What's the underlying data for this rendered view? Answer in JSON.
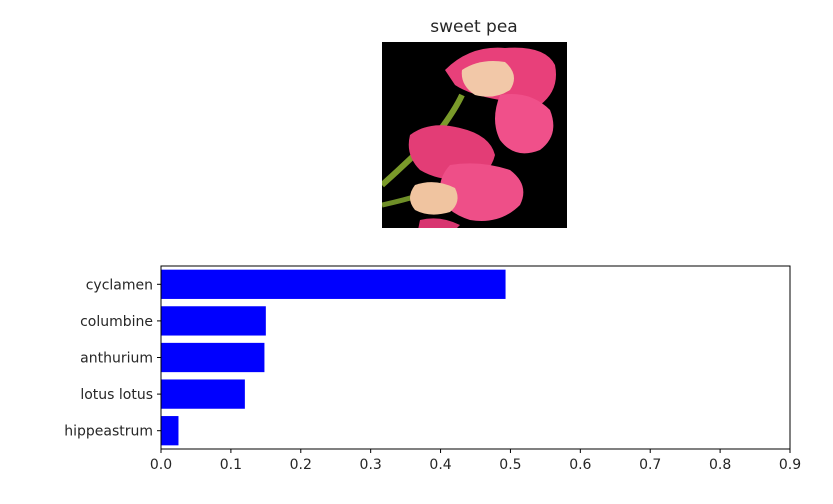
{
  "image_panel": {
    "title": "sweet pea"
  },
  "chart_data": {
    "type": "bar",
    "orientation": "horizontal",
    "categories": [
      "cyclamen",
      "columbine",
      "anthurium",
      "lotus lotus",
      "hippeastrum"
    ],
    "values": [
      0.493,
      0.15,
      0.148,
      0.12,
      0.025
    ],
    "xlim": [
      0,
      0.9
    ],
    "x_ticks": [
      "0.0",
      "0.1",
      "0.2",
      "0.3",
      "0.4",
      "0.5",
      "0.6",
      "0.7",
      "0.8",
      "0.9"
    ],
    "bar_color": "#0000ff",
    "grid": false,
    "xlabel": "",
    "ylabel": ""
  }
}
